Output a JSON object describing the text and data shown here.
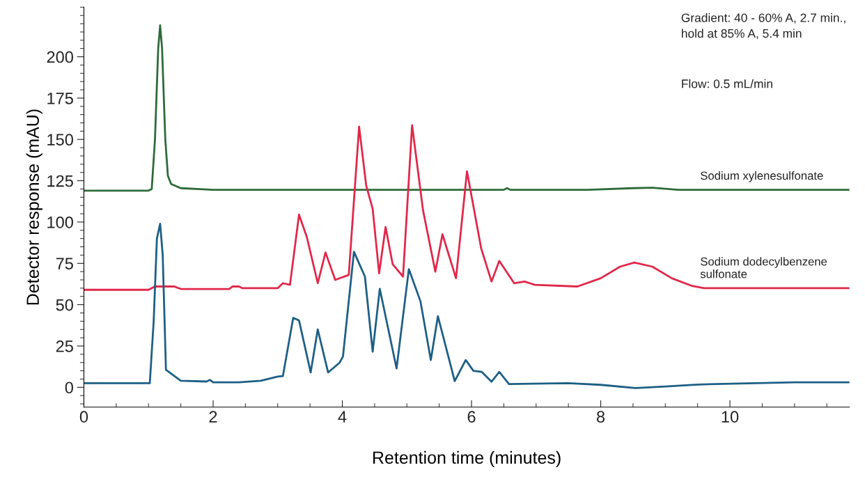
{
  "chart_data": {
    "type": "line",
    "xlabel": "Retention time (minutes)",
    "ylabel": "Detector response (mAU)",
    "xlim": [
      0,
      11.85
    ],
    "ylim": [
      -12,
      230
    ],
    "xticks": [
      0,
      2,
      4,
      6,
      8,
      10
    ],
    "yticks": [
      0,
      25,
      50,
      75,
      100,
      125,
      150,
      175,
      200
    ],
    "grid": false,
    "legend": false,
    "marker": "none",
    "line_style": "solid",
    "annotations": [
      "Gradient: 40 - 60% A, 2.7 min.,\nhold at 85% A, 5.4 min",
      "Flow: 0.5 mL/min"
    ],
    "series": [
      {
        "name": "Sodium xylenesulfonate",
        "color": "#2e6b3a",
        "x": [
          0,
          1.0,
          1.05,
          1.1,
          1.15,
          1.18,
          1.21,
          1.26,
          1.3,
          1.35,
          1.5,
          2.0,
          6.5,
          6.55,
          6.6,
          7.8,
          8.5,
          8.8,
          8.9,
          9.2,
          11.85
        ],
        "values": [
          119,
          119,
          120,
          150,
          205,
          219,
          205,
          150,
          128,
          123,
          120.5,
          119.5,
          119.5,
          120.5,
          119.5,
          119.5,
          120.5,
          120.8,
          120.5,
          119.5,
          119.5
        ]
      },
      {
        "name": "Sodium dodecylbenzene\nsulfonate",
        "color": "#e0284a",
        "x": [
          0,
          1.0,
          1.1,
          1.4,
          1.5,
          2.25,
          2.3,
          2.4,
          2.45,
          3.0,
          3.08,
          3.19,
          3.33,
          3.45,
          3.62,
          3.74,
          3.89,
          4.1,
          4.26,
          4.37,
          4.47,
          4.57,
          4.67,
          4.78,
          4.94,
          5.08,
          5.25,
          5.44,
          5.55,
          5.76,
          5.93,
          6.15,
          6.31,
          6.43,
          6.66,
          6.82,
          6.98,
          7.64,
          8.0,
          8.3,
          8.52,
          8.8,
          9.1,
          9.4,
          9.6,
          11.85
        ],
        "values": [
          59,
          59,
          61,
          61,
          59.5,
          59.5,
          61,
          61,
          60,
          60,
          63,
          62,
          104.5,
          91,
          63,
          81.6,
          65,
          68,
          157.7,
          122,
          108,
          69,
          97,
          74.4,
          67,
          158.6,
          107,
          70,
          92.6,
          66,
          130.7,
          84,
          64,
          76.5,
          63,
          64,
          62,
          61,
          66,
          73,
          75.5,
          73,
          66,
          61.5,
          60,
          60
        ]
      },
      {
        "color": "#1d5f85",
        "x": [
          0,
          1.02,
          1.08,
          1.13,
          1.18,
          1.22,
          1.27,
          1.5,
          1.9,
          1.95,
          2.0,
          2.4,
          2.74,
          3.0,
          3.08,
          3.24,
          3.33,
          3.51,
          3.62,
          3.78,
          3.96,
          4.01,
          4.18,
          4.35,
          4.47,
          4.58,
          4.84,
          5.03,
          5.21,
          5.37,
          5.48,
          5.74,
          5.91,
          6.03,
          6.16,
          6.31,
          6.43,
          6.58,
          7.5,
          8.0,
          8.54,
          9.0,
          9.5,
          11.0,
          11.85
        ],
        "values": [
          2.5,
          2.5,
          40,
          90,
          99,
          80,
          10.6,
          4,
          3.5,
          4.5,
          3,
          3,
          4,
          6.5,
          6.8,
          42,
          40.5,
          9,
          35,
          9,
          15,
          18.6,
          82,
          67,
          21.6,
          59.6,
          11.4,
          71.5,
          52,
          16.5,
          43,
          3.8,
          16.5,
          10,
          9.3,
          3.4,
          9.3,
          2,
          2.5,
          1.5,
          -0.4,
          0.5,
          1.7,
          3,
          3
        ]
      }
    ]
  }
}
